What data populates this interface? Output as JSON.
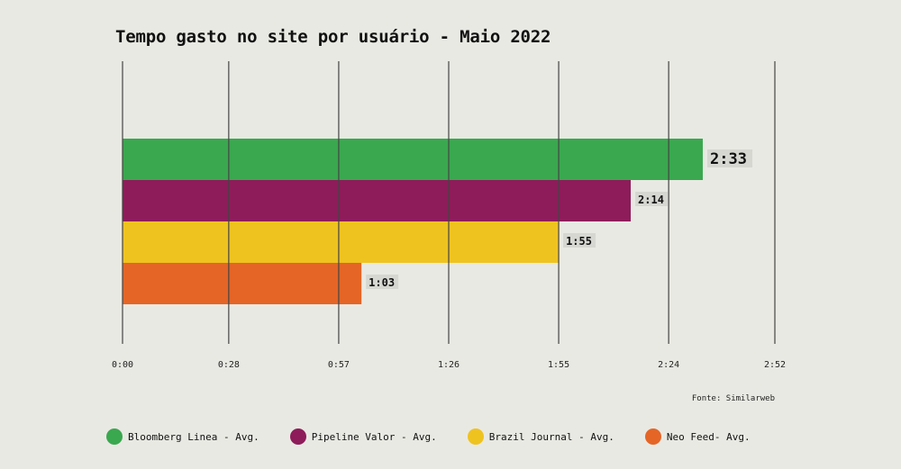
{
  "chart_data": {
    "type": "bar",
    "orientation": "horizontal",
    "title": "Tempo gasto no site por usuário - Maio 2022",
    "source": "Fonte: Similarweb",
    "x_ticks": [
      "0:00",
      "0:28",
      "0:57",
      "1:26",
      "1:55",
      "2:24",
      "2:52"
    ],
    "x_tick_seconds": [
      0,
      28,
      57,
      86,
      115,
      144,
      172
    ],
    "xlim_seconds": [
      0,
      172
    ],
    "grid": true,
    "legend_position": "bottom",
    "series": [
      {
        "name": "Bloomberg Linea - Avg.",
        "value_seconds": 153,
        "label": "2:33",
        "color": "#3aa84f"
      },
      {
        "name": "Pipeline Valor - Avg.",
        "value_seconds": 134,
        "label": "2:14",
        "color": "#8e1c5a"
      },
      {
        "name": "Brazil Journal - Avg.",
        "value_seconds": 115,
        "label": "1:55",
        "color": "#efc31f"
      },
      {
        "name": "Neo Feed- Avg.",
        "value_seconds": 63,
        "label": "1:03",
        "color": "#e56526"
      }
    ]
  }
}
